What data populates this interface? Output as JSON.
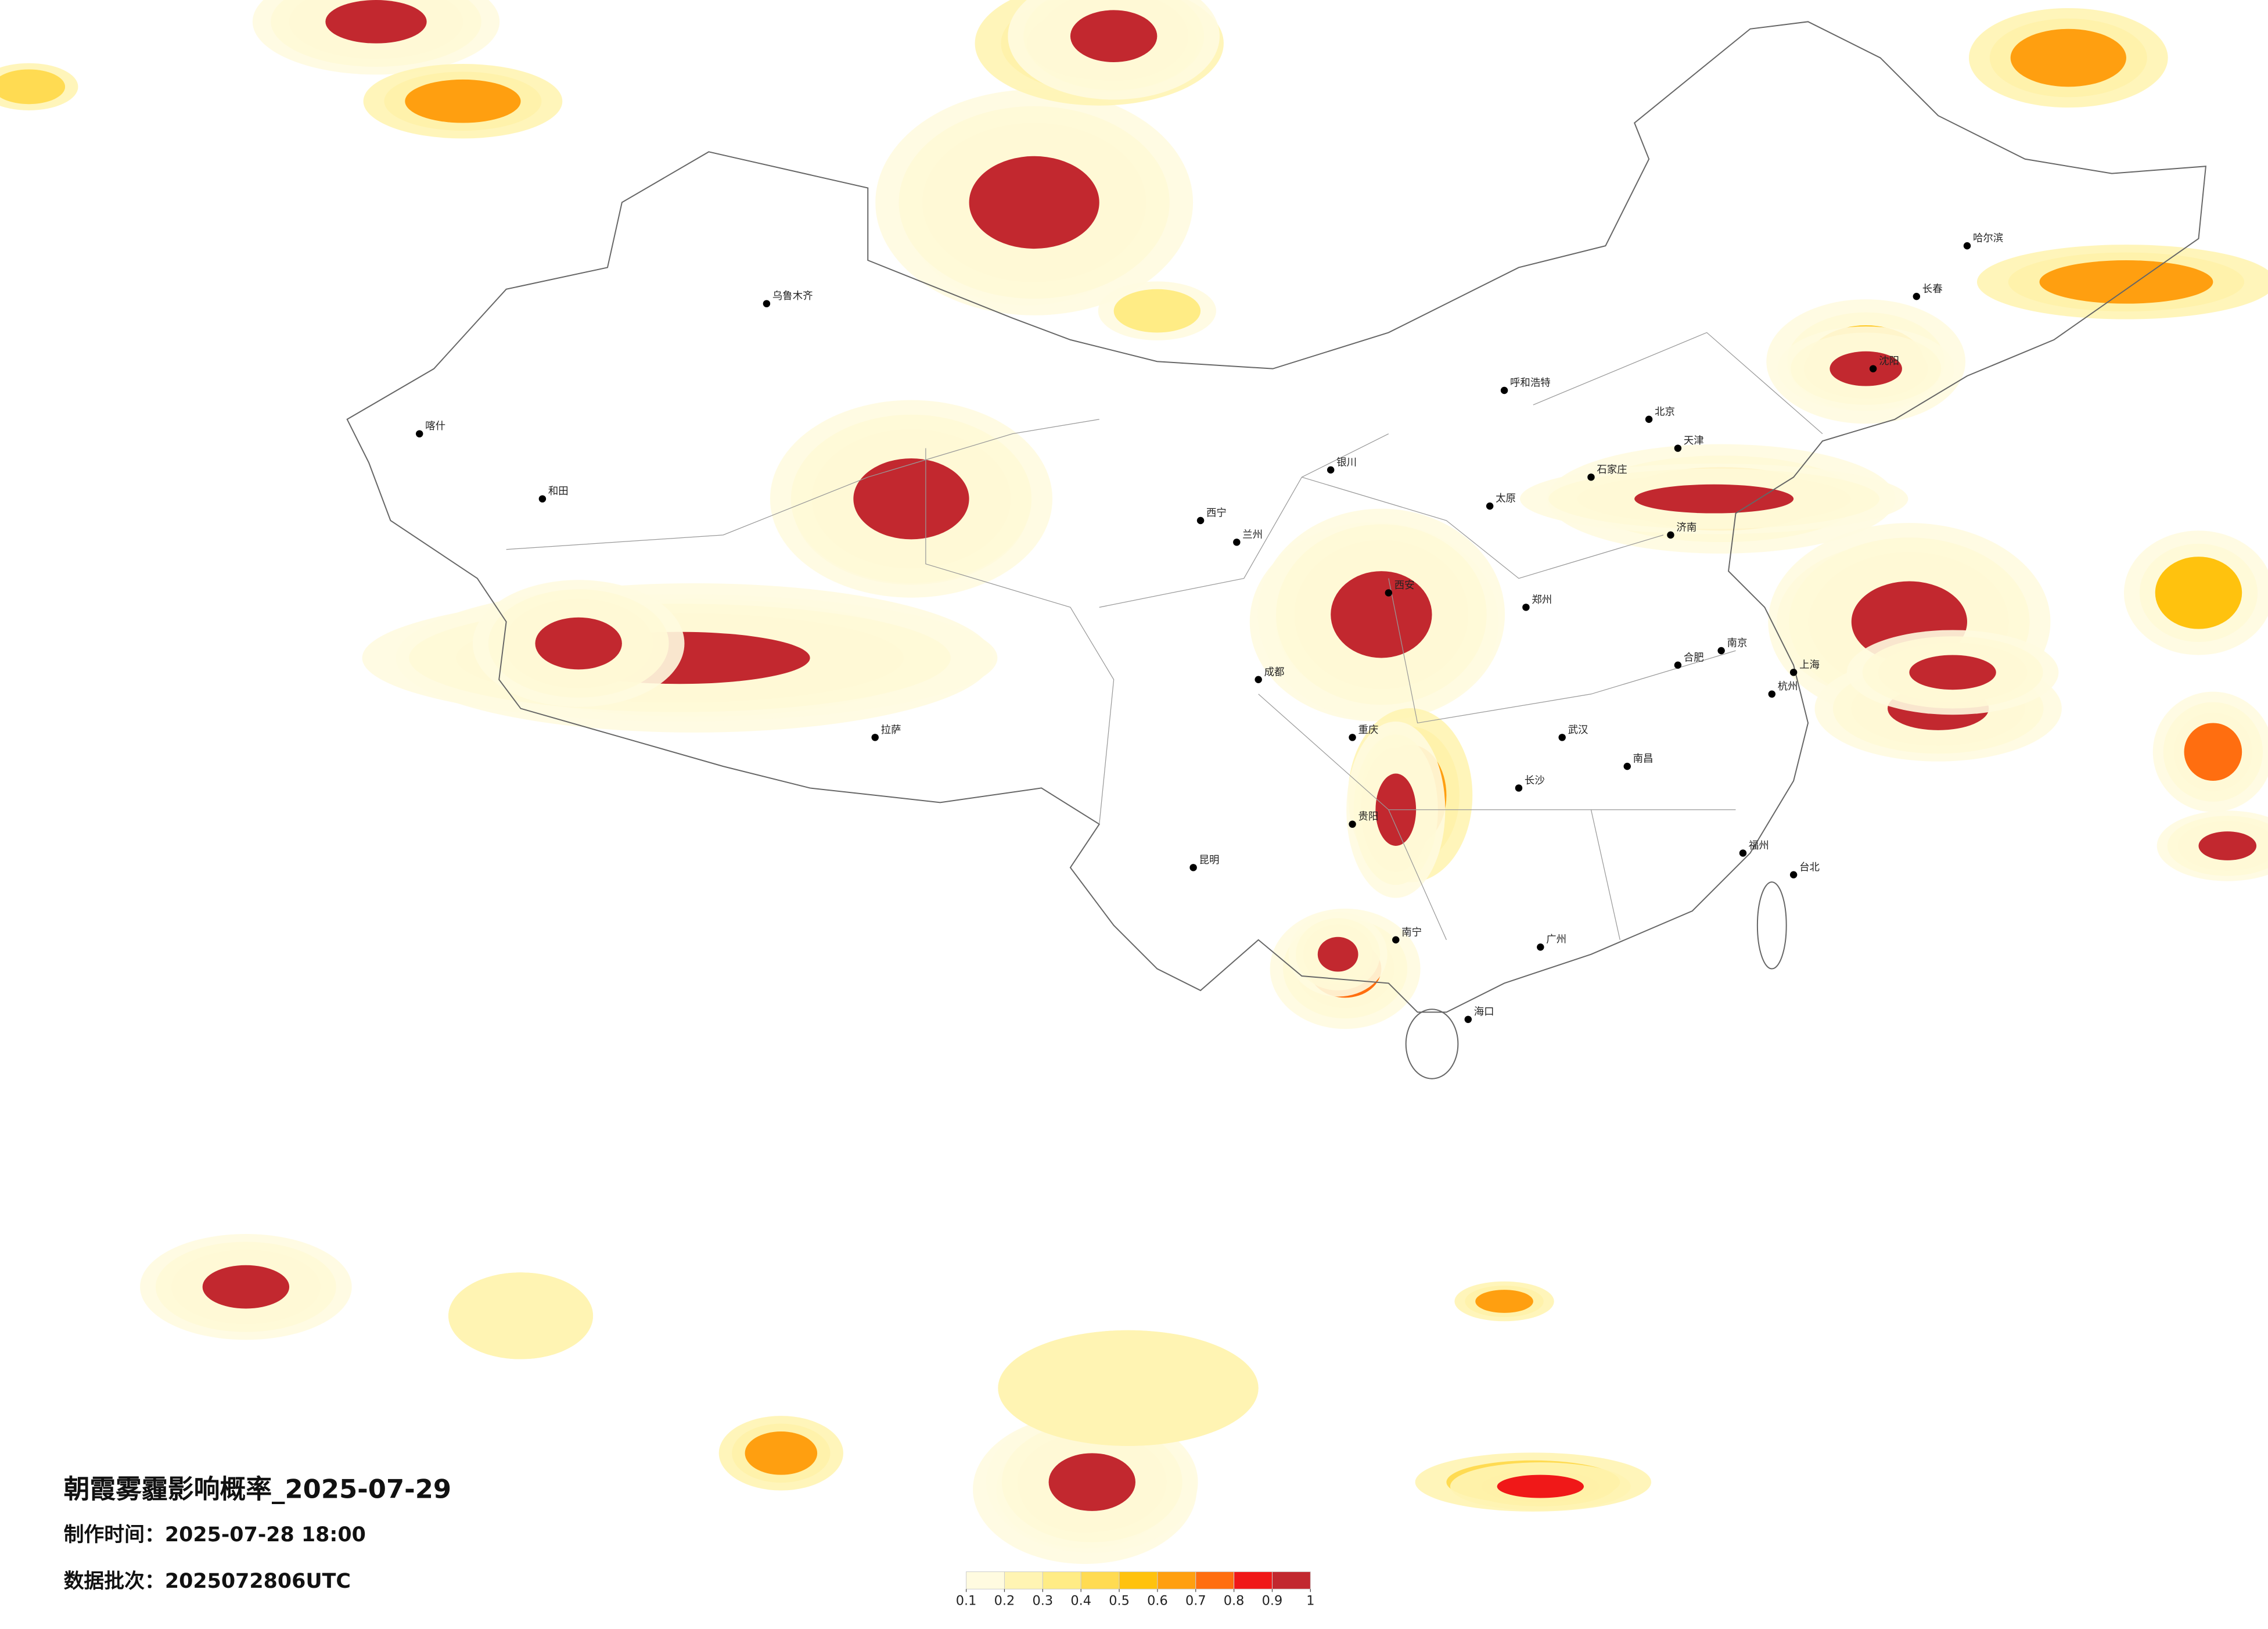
{
  "title": "朝霞雾霾影响概率_2025-07-29",
  "made_time": "制作时间：2025-07-28 18:00",
  "data_batch": "数据批次：2025072806UTC",
  "legend": {
    "ticks": [
      0.1,
      0.2,
      0.3,
      0.4,
      0.5,
      0.6,
      0.7,
      0.8,
      0.9,
      1
    ],
    "colors": [
      "#fffbe0",
      "#fff4b3",
      "#ffec85",
      "#ffdb52",
      "#ffc20e",
      "#ff9f10",
      "#ff6e10",
      "#f01818",
      "#c2282f"
    ]
  },
  "cities": [
    "北京",
    "天津",
    "上海",
    "广州",
    "重庆",
    "成都",
    "武汉",
    "西安",
    "兰州",
    "乌鲁木齐",
    "拉萨",
    "哈尔滨",
    "长春",
    "沈阳",
    "昆明",
    "南宁",
    "海口",
    "郑州",
    "济南",
    "呼和浩特",
    "西宁",
    "银川",
    "贵阳",
    "长沙",
    "南昌",
    "福州",
    "杭州",
    "南京",
    "合肥",
    "太原",
    "石家庄",
    "台北",
    "和田",
    "喀什"
  ]
}
